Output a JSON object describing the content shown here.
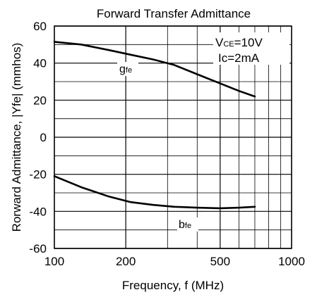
{
  "chart_data": {
    "type": "line",
    "title": "Forward Transfer Admittance",
    "xlabel": "Frequency, f (MHz)",
    "ylabel": "Rorward Admittance, |Yfe| (mmhos)",
    "x_scale": "log",
    "xlim": [
      100,
      1000
    ],
    "ylim": [
      -60,
      60
    ],
    "x_ticks": [
      "100",
      "200",
      "500",
      "1000"
    ],
    "y_ticks": [
      "60",
      "40",
      "20",
      "0",
      "-20",
      "-40",
      "-60"
    ],
    "grid": true,
    "annotations": {
      "condition_1": {
        "symbol": "V",
        "sub": "CE",
        "rest": "=10V"
      },
      "condition_2": {
        "symbol": "Ic",
        "sub": "",
        "rest": "=2mA"
      }
    },
    "series": [
      {
        "name": "gfe",
        "label_main": "g",
        "label_sub": "fe",
        "x": [
          100,
          130,
          170,
          210,
          260,
          320,
          400,
          500,
          600,
          700
        ],
        "y": [
          51.5,
          50,
          47,
          44.5,
          42,
          39,
          34,
          29,
          25,
          22
        ]
      },
      {
        "name": "bfe",
        "label_main": "b",
        "label_sub": "fe",
        "x": [
          100,
          130,
          170,
          210,
          260,
          320,
          400,
          500,
          600,
          700
        ],
        "y": [
          -21,
          -27,
          -32,
          -35,
          -36.5,
          -37.5,
          -38,
          -38.3,
          -38,
          -37.5
        ]
      }
    ]
  }
}
